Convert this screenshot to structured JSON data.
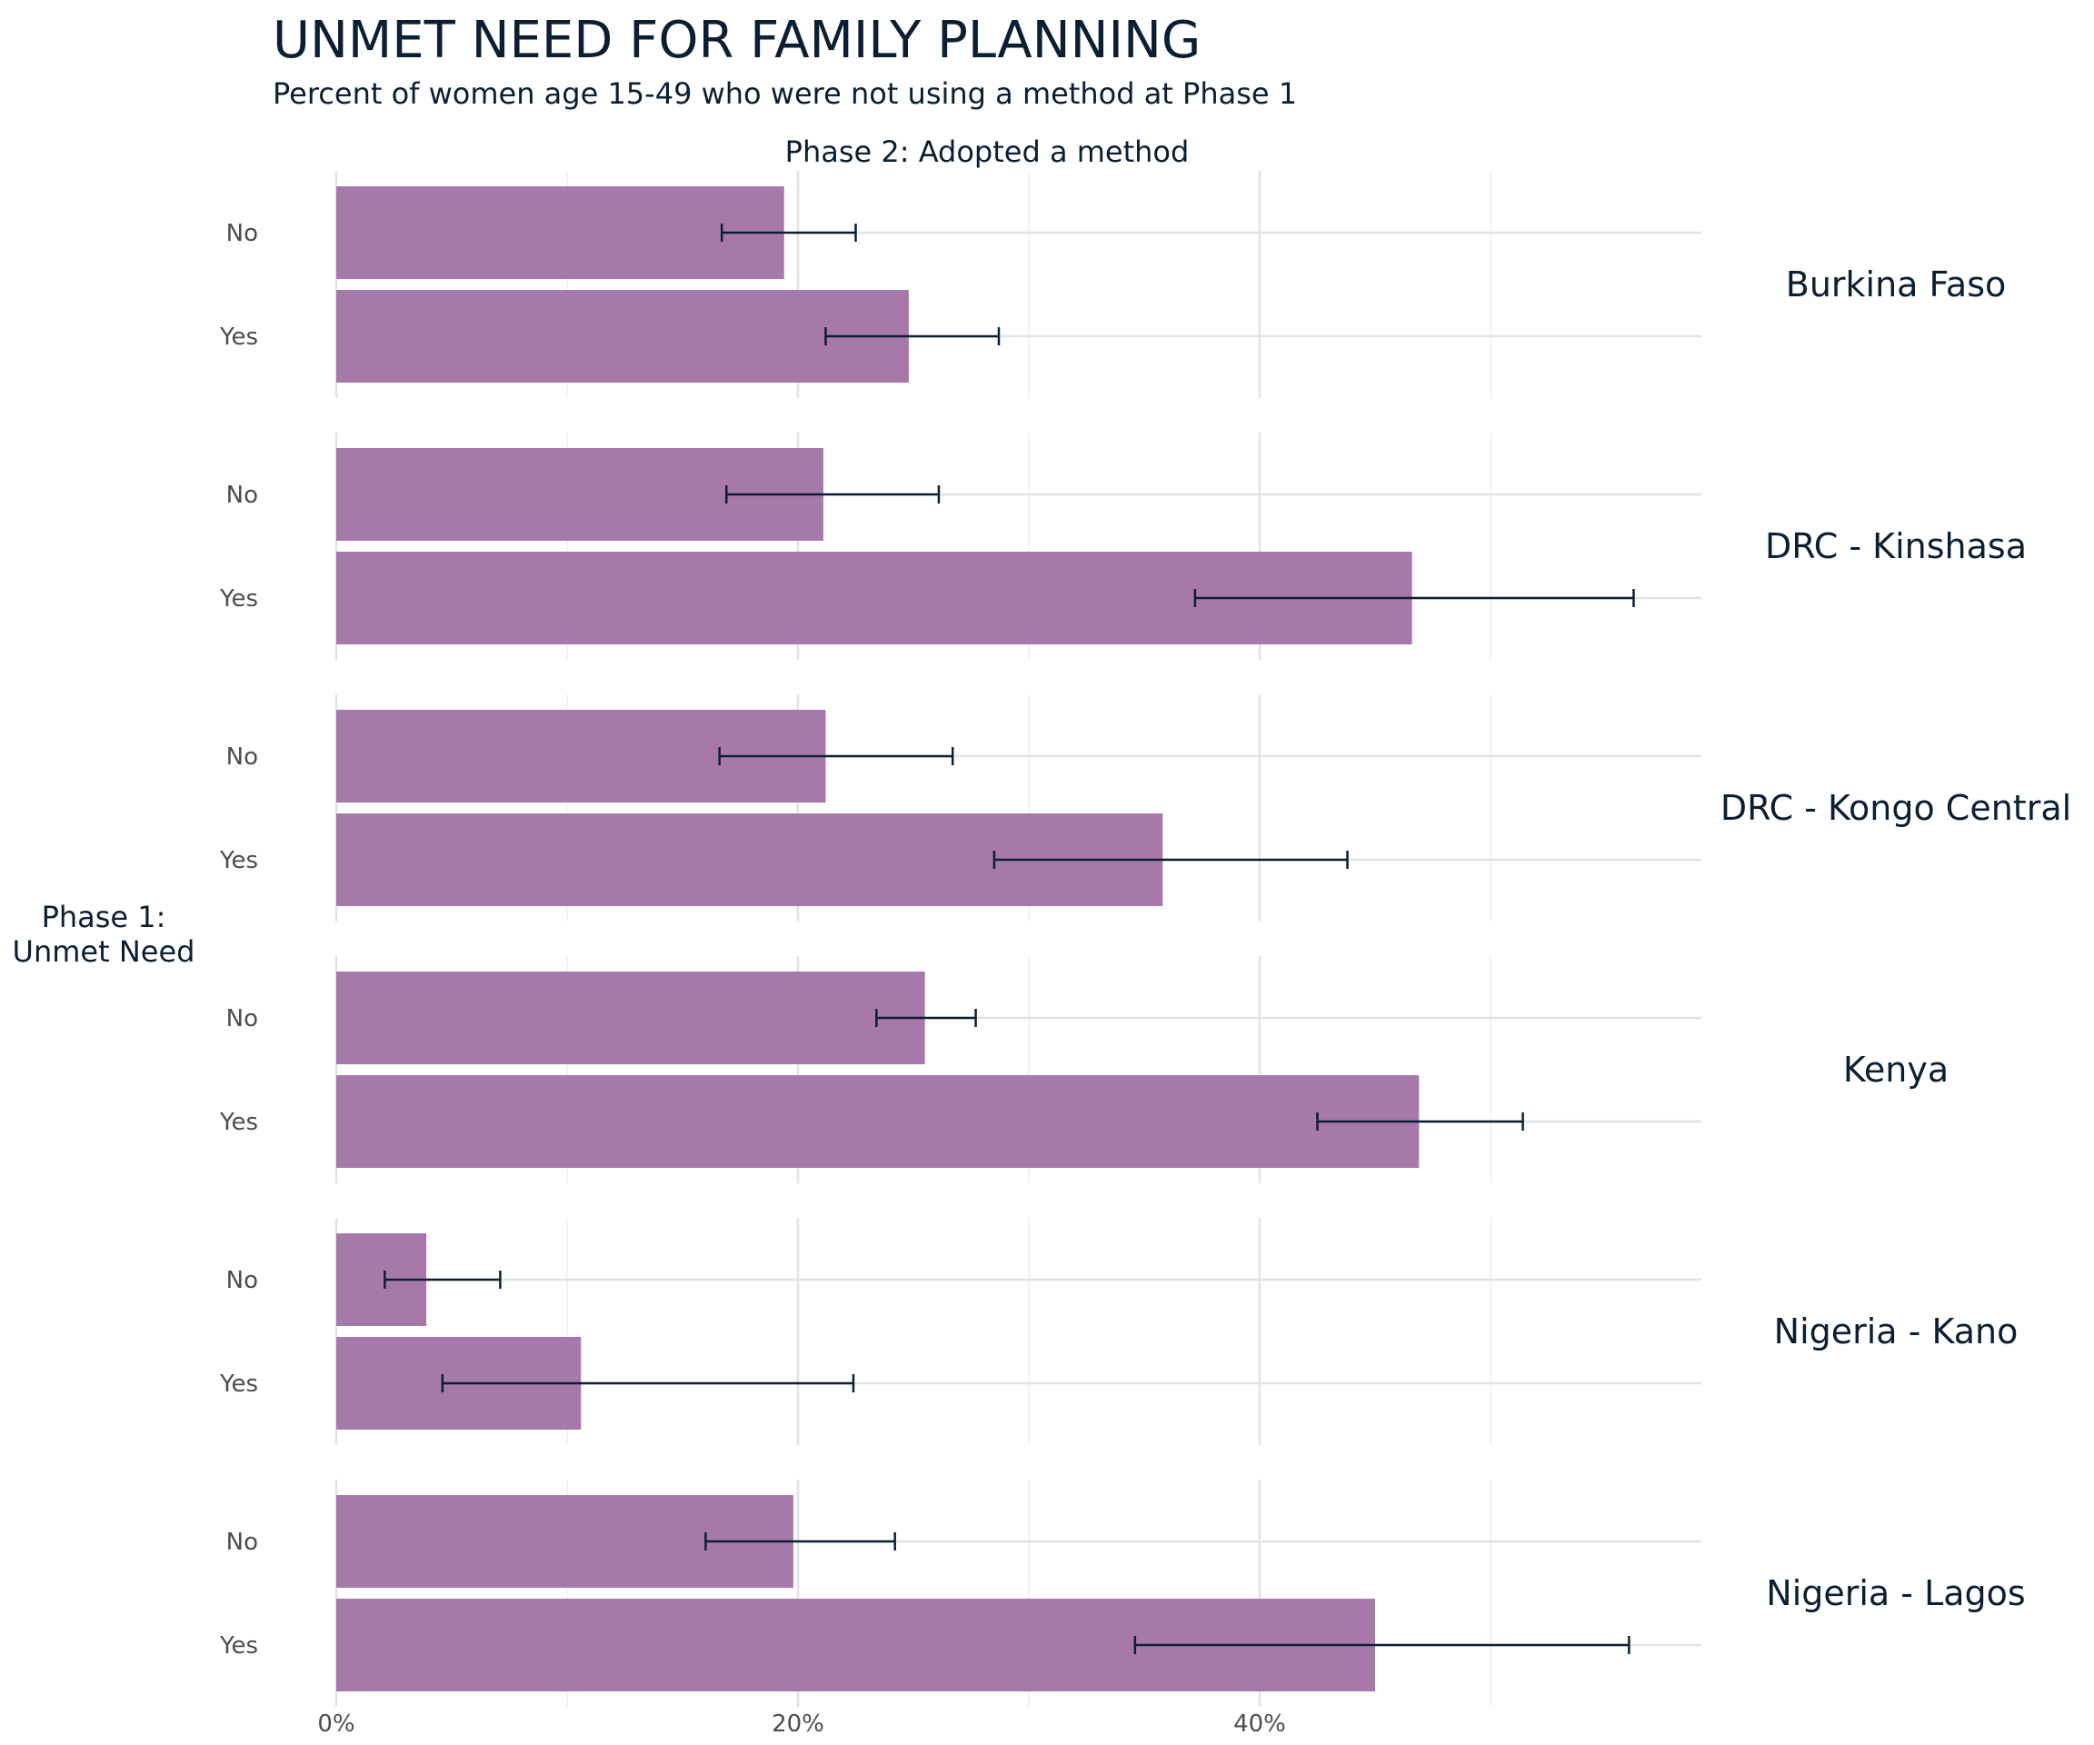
{
  "chart_data": {
    "type": "bar",
    "orientation": "horizontal",
    "title": "UNMET NEED FOR FAMILY PLANNING",
    "subtitle": "Percent of women age 15-49 who were not using a method at Phase 1",
    "facet_header": "Phase 2: Adopted a method",
    "ylabel": "Phase 1:\nUnmet Need",
    "xlabel": "",
    "categories": [
      "No",
      "Yes"
    ],
    "x_ticks": [
      "0%",
      "20%",
      "40%"
    ],
    "x_tick_values": [
      0,
      20,
      40
    ],
    "xlim": [
      0,
      59
    ],
    "grid": true,
    "legend": "none",
    "bar_color": "#a779ab",
    "error_color": "#0b1f33",
    "panels": [
      {
        "label": "Burkina Faso",
        "values": [
          19.4,
          24.8
        ],
        "ci_low": [
          16.7,
          21.2
        ],
        "ci_high": [
          22.5,
          28.7
        ]
      },
      {
        "label": "DRC - Kinshasa",
        "values": [
          21.1,
          46.6
        ],
        "ci_low": [
          16.9,
          37.2
        ],
        "ci_high": [
          26.1,
          56.2
        ]
      },
      {
        "label": "DRC - Kongo Central",
        "values": [
          21.2,
          35.8
        ],
        "ci_low": [
          16.6,
          28.5
        ],
        "ci_high": [
          26.7,
          43.8
        ]
      },
      {
        "label": "Kenya",
        "values": [
          25.5,
          46.9
        ],
        "ci_low": [
          23.4,
          42.5
        ],
        "ci_high": [
          27.7,
          51.4
        ]
      },
      {
        "label": "Nigeria - Kano",
        "values": [
          3.9,
          10.6
        ],
        "ci_low": [
          2.1,
          4.6
        ],
        "ci_high": [
          7.1,
          22.4
        ]
      },
      {
        "label": "Nigeria - Lagos",
        "values": [
          19.8,
          45.0
        ],
        "ci_low": [
          16.0,
          34.6
        ],
        "ci_high": [
          24.2,
          56.0
        ]
      }
    ]
  }
}
